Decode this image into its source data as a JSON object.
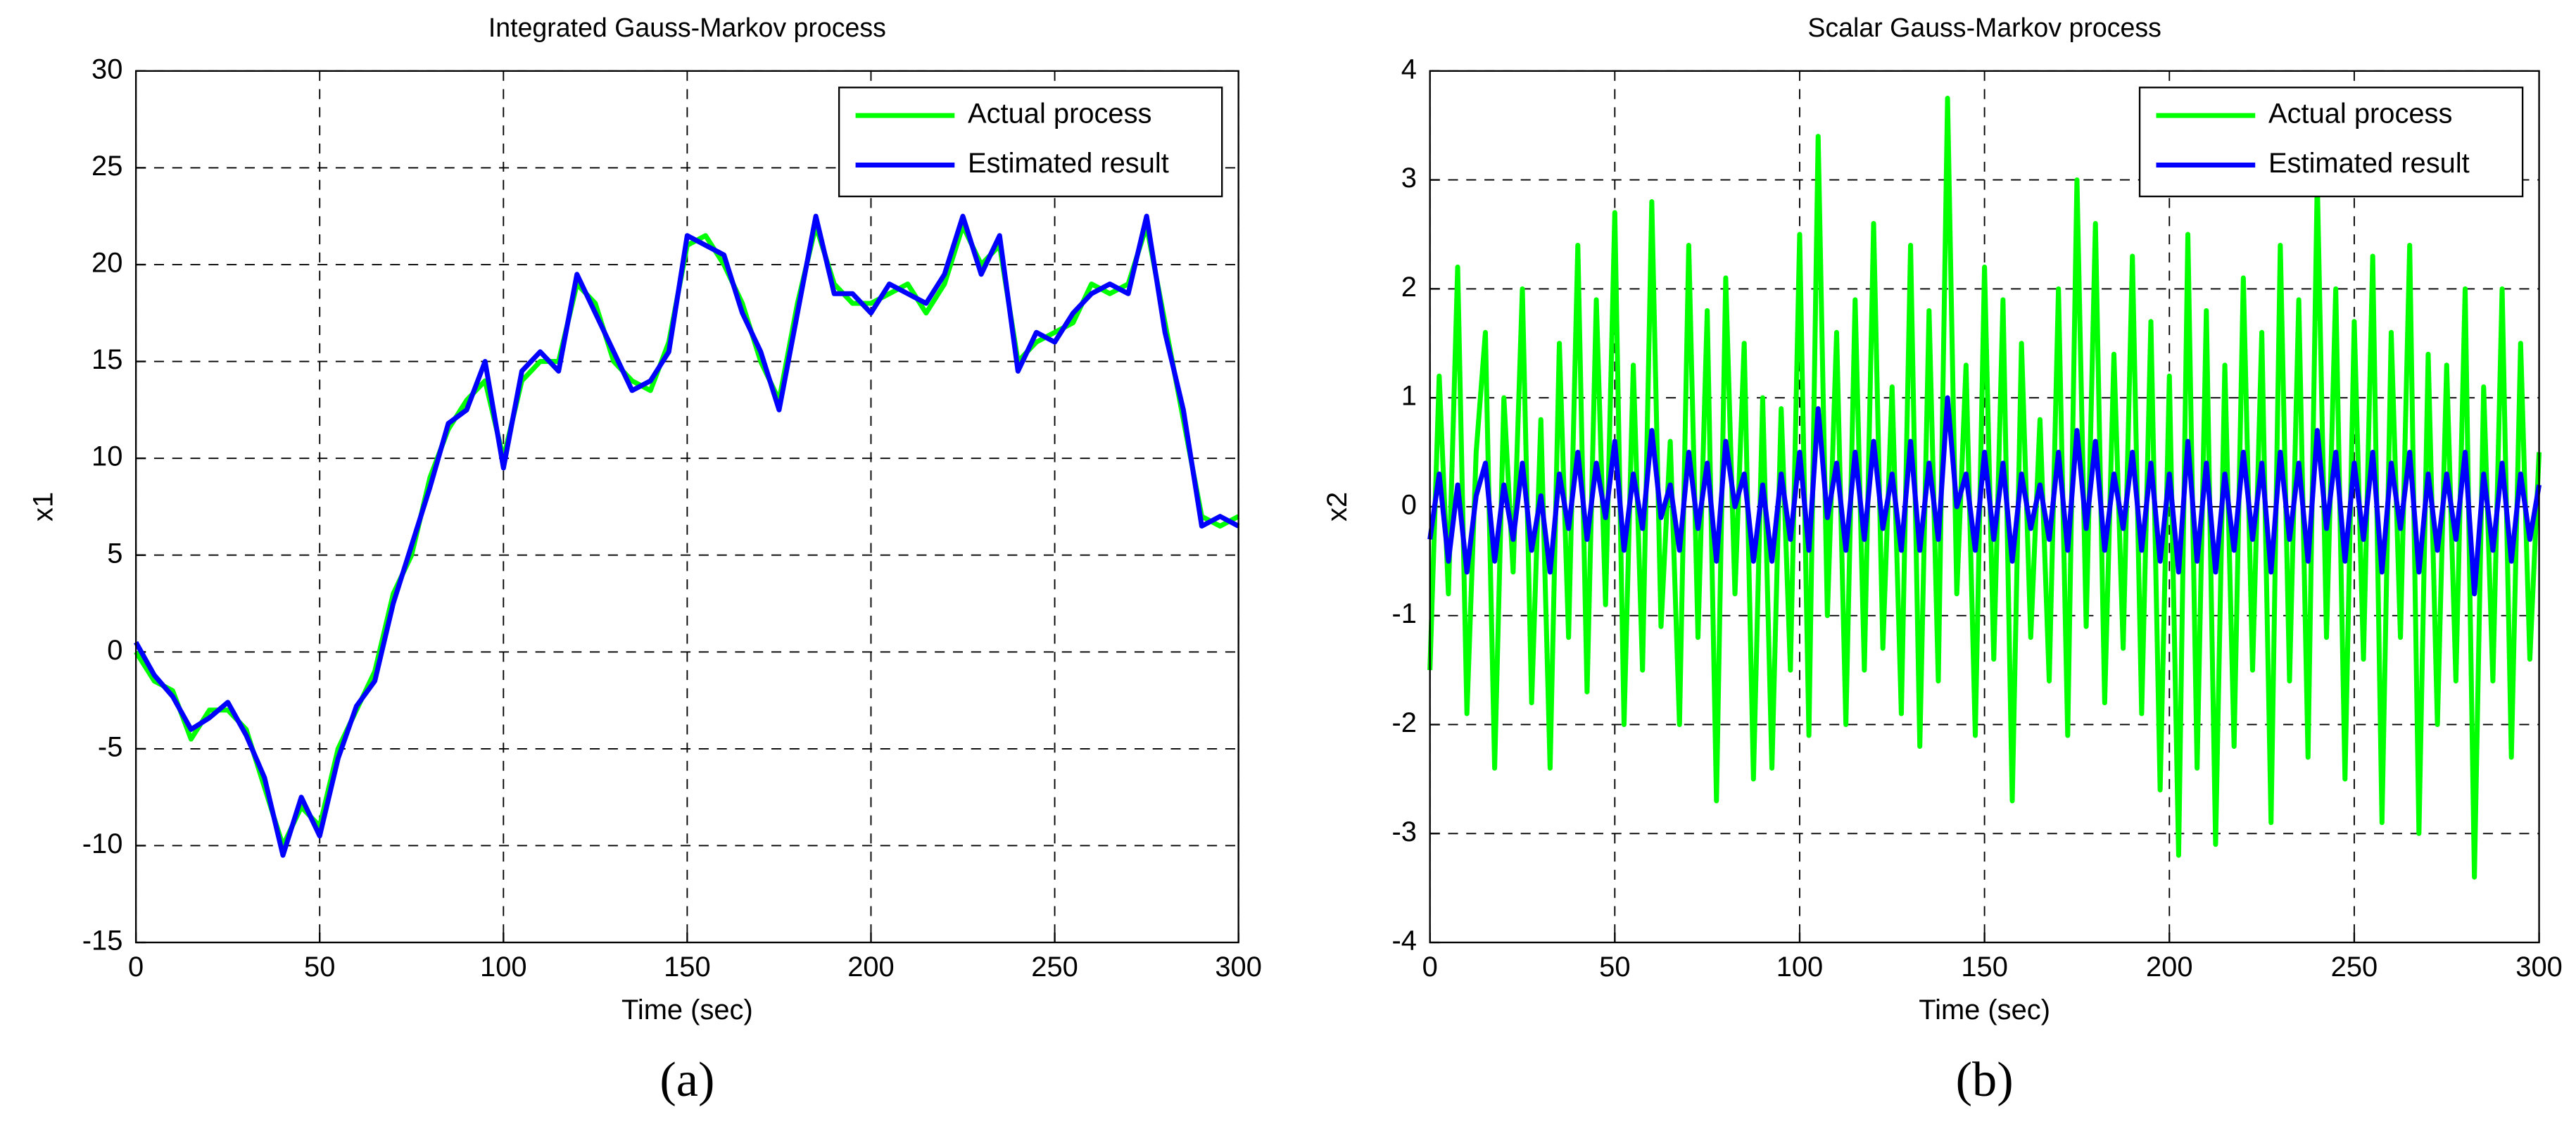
{
  "chart_data": [
    {
      "type": "line",
      "title": "Integrated Gauss-Markov process",
      "xlabel": "Time (sec)",
      "ylabel": "x1",
      "caption": "(a)",
      "xlim": [
        0,
        300
      ],
      "ylim": [
        -15,
        30
      ],
      "xticks": [
        0,
        50,
        100,
        150,
        200,
        250,
        300
      ],
      "yticks": [
        -15,
        -10,
        -5,
        0,
        5,
        10,
        15,
        20,
        25,
        30
      ],
      "grid": true,
      "legend": "upper right",
      "x": [
        0,
        5,
        10,
        15,
        20,
        25,
        30,
        35,
        40,
        45,
        50,
        55,
        60,
        65,
        70,
        75,
        80,
        85,
        90,
        95,
        100,
        105,
        110,
        115,
        120,
        125,
        130,
        135,
        140,
        145,
        150,
        155,
        160,
        165,
        170,
        175,
        180,
        185,
        190,
        195,
        200,
        205,
        210,
        215,
        220,
        225,
        230,
        235,
        240,
        245,
        250,
        255,
        260,
        265,
        270,
        275,
        280,
        285,
        290,
        295,
        300
      ],
      "series": [
        {
          "name": "Actual process",
          "color": "#00ff00",
          "values": [
            0,
            -1.5,
            -2,
            -4.5,
            -3,
            -3,
            -4,
            -7,
            -10,
            -8,
            -9,
            -5,
            -3,
            -1,
            3,
            5,
            9,
            11.5,
            13,
            14,
            10,
            14,
            15,
            15,
            19,
            18,
            15,
            14,
            13.5,
            16,
            21,
            21.5,
            20,
            18,
            15,
            13,
            18,
            22,
            19,
            18,
            18,
            18.5,
            19,
            17.5,
            19,
            22,
            20,
            21,
            15,
            16,
            16.5,
            17,
            19,
            18.5,
            19,
            22,
            17,
            12,
            7,
            6.5,
            7
          ]
        },
        {
          "name": "Estimated result",
          "color": "#0000ff",
          "values": [
            0.5,
            -1.2,
            -2.3,
            -4,
            -3.4,
            -2.6,
            -4.3,
            -6.5,
            -10.5,
            -7.5,
            -9.5,
            -5.5,
            -2.8,
            -1.5,
            2.5,
            5.5,
            8.5,
            11.8,
            12.5,
            15,
            9.5,
            14.5,
            15.5,
            14.5,
            19.5,
            17.5,
            15.5,
            13.5,
            14,
            15.5,
            21.5,
            21,
            20.5,
            17.5,
            15.5,
            12.5,
            17.5,
            22.5,
            18.5,
            18.5,
            17.5,
            19,
            18.5,
            18,
            19.5,
            22.5,
            19.5,
            21.5,
            14.5,
            16.5,
            16,
            17.5,
            18.5,
            19,
            18.5,
            22.5,
            16.5,
            12.5,
            6.5,
            7,
            6.5
          ]
        }
      ]
    },
    {
      "type": "line",
      "title": "Scalar Gauss-Markov process",
      "xlabel": "Time (sec)",
      "ylabel": "x2",
      "caption": "(b)",
      "xlim": [
        0,
        300
      ],
      "ylim": [
        -4,
        4
      ],
      "xticks": [
        0,
        50,
        100,
        150,
        200,
        250,
        300
      ],
      "yticks": [
        -4,
        -3,
        -2,
        -1,
        0,
        1,
        2,
        3,
        4
      ],
      "grid": true,
      "legend": "upper right",
      "x": [
        0,
        2.5,
        5,
        7.5,
        10,
        12.5,
        15,
        17.5,
        20,
        22.5,
        25,
        27.5,
        30,
        32.5,
        35,
        37.5,
        40,
        42.5,
        45,
        47.5,
        50,
        52.5,
        55,
        57.5,
        60,
        62.5,
        65,
        67.5,
        70,
        72.5,
        75,
        77.5,
        80,
        82.5,
        85,
        87.5,
        90,
        92.5,
        95,
        97.5,
        100,
        102.5,
        105,
        107.5,
        110,
        112.5,
        115,
        117.5,
        120,
        122.5,
        125,
        127.5,
        130,
        132.5,
        135,
        137.5,
        140,
        142.5,
        145,
        147.5,
        150,
        152.5,
        155,
        157.5,
        160,
        162.5,
        165,
        167.5,
        170,
        172.5,
        175,
        177.5,
        180,
        182.5,
        185,
        187.5,
        190,
        192.5,
        195,
        197.5,
        200,
        202.5,
        205,
        207.5,
        210,
        212.5,
        215,
        217.5,
        220,
        222.5,
        225,
        227.5,
        230,
        232.5,
        235,
        237.5,
        240,
        242.5,
        245,
        247.5,
        250,
        252.5,
        255,
        257.5,
        260,
        262.5,
        265,
        267.5,
        270,
        272.5,
        275,
        277.5,
        280,
        282.5,
        285,
        287.5,
        290,
        292.5,
        295,
        297.5,
        300
      ],
      "series": [
        {
          "name": "Actual process",
          "color": "#00ff00",
          "values": [
            -1.5,
            1.2,
            -0.8,
            2.2,
            -1.9,
            0.5,
            1.6,
            -2.4,
            1.0,
            -0.6,
            2.0,
            -1.8,
            0.8,
            -2.4,
            1.5,
            -1.2,
            2.4,
            -1.7,
            1.9,
            -0.9,
            2.7,
            -2.0,
            1.3,
            -1.5,
            2.8,
            -1.1,
            0.6,
            -2.0,
            2.4,
            -1.2,
            1.8,
            -2.7,
            2.1,
            -0.8,
            1.5,
            -2.5,
            1.0,
            -2.4,
            0.9,
            -1.5,
            2.5,
            -2.1,
            3.4,
            -1.0,
            1.6,
            -2.0,
            1.9,
            -1.5,
            2.6,
            -1.3,
            1.1,
            -1.9,
            2.4,
            -2.2,
            1.8,
            -1.6,
            3.75,
            -0.8,
            1.3,
            -2.1,
            2.2,
            -1.4,
            1.9,
            -2.7,
            1.5,
            -1.2,
            0.8,
            -1.6,
            2.0,
            -2.1,
            3.0,
            -1.1,
            2.6,
            -1.8,
            1.4,
            -1.3,
            2.3,
            -1.9,
            1.7,
            -2.6,
            1.2,
            -3.2,
            2.5,
            -2.4,
            1.8,
            -3.1,
            1.3,
            -2.2,
            2.1,
            -1.5,
            1.6,
            -2.9,
            2.4,
            -1.6,
            1.9,
            -2.3,
            3.0,
            -1.2,
            2.0,
            -2.5,
            1.7,
            -1.4,
            2.3,
            -2.9,
            1.6,
            -1.2,
            2.4,
            -3.0,
            1.4,
            -2.0,
            1.3,
            -1.6,
            2.0,
            -3.4,
            1.1,
            -1.6,
            2.0,
            -2.3,
            1.5,
            -1.4,
            0.5
          ]
        },
        {
          "name": "Estimated result",
          "color": "#0000ff",
          "values": [
            -0.3,
            0.3,
            -0.5,
            0.2,
            -0.6,
            0.1,
            0.4,
            -0.5,
            0.2,
            -0.3,
            0.4,
            -0.4,
            0.1,
            -0.6,
            0.3,
            -0.2,
            0.5,
            -0.3,
            0.4,
            -0.1,
            0.6,
            -0.4,
            0.3,
            -0.2,
            0.7,
            -0.1,
            0.2,
            -0.4,
            0.5,
            -0.2,
            0.4,
            -0.5,
            0.6,
            0.0,
            0.3,
            -0.5,
            0.2,
            -0.5,
            0.3,
            -0.3,
            0.5,
            -0.4,
            0.9,
            -0.1,
            0.4,
            -0.4,
            0.5,
            -0.3,
            0.6,
            -0.2,
            0.3,
            -0.4,
            0.6,
            -0.4,
            0.4,
            -0.3,
            1.0,
            0.0,
            0.3,
            -0.4,
            0.5,
            -0.3,
            0.4,
            -0.5,
            0.3,
            -0.2,
            0.2,
            -0.3,
            0.5,
            -0.4,
            0.7,
            -0.2,
            0.6,
            -0.4,
            0.3,
            -0.2,
            0.5,
            -0.4,
            0.4,
            -0.5,
            0.3,
            -0.6,
            0.6,
            -0.5,
            0.4,
            -0.6,
            0.3,
            -0.4,
            0.5,
            -0.3,
            0.4,
            -0.6,
            0.5,
            -0.3,
            0.4,
            -0.5,
            0.7,
            -0.2,
            0.5,
            -0.5,
            0.4,
            -0.3,
            0.5,
            -0.6,
            0.4,
            -0.2,
            0.5,
            -0.6,
            0.3,
            -0.4,
            0.3,
            -0.3,
            0.5,
            -0.8,
            0.3,
            -0.4,
            0.4,
            -0.5,
            0.3,
            -0.3,
            0.2
          ]
        }
      ]
    }
  ]
}
